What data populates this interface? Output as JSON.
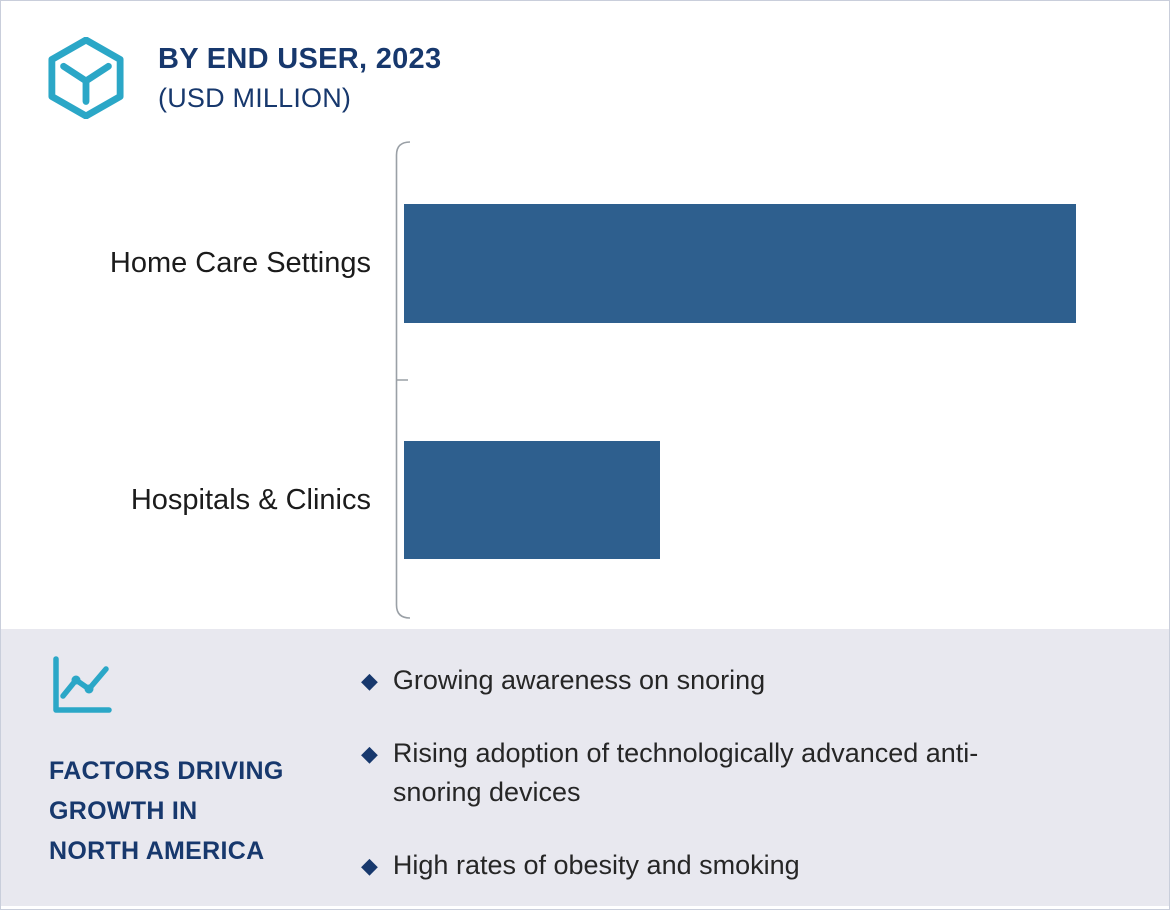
{
  "header": {
    "title": "BY END USER, 2023",
    "subtitle": "(USD MILLION)"
  },
  "chart_data": {
    "type": "bar",
    "orientation": "horizontal",
    "title": "BY END USER, 2023 (USD MILLION)",
    "categories": [
      "Home Care Settings",
      "Hospitals & Clinics"
    ],
    "values": [
      675,
      257
    ],
    "xlim": [
      0,
      766
    ],
    "xlabel": "",
    "ylabel": "",
    "grid": false,
    "legend": false,
    "value_labels": false,
    "bar_color": "#2E5F8E",
    "axis_color": "#9AA0A6"
  },
  "factors": {
    "heading": "FACTORS DRIVING\nGROWTH IN\nNORTH AMERICA",
    "marker": "◆",
    "items": [
      "Growing awareness on snoring",
      "Rising adoption of technologically advanced anti-snoring devices",
      "High rates of obesity and smoking"
    ]
  },
  "icons": {
    "brand": "hexagon-y-icon",
    "factors": "line-chart-icon"
  },
  "colors": {
    "navy": "#17386D",
    "teal": "#2BA7C7",
    "panel_bg": "#E8E8EF",
    "bar": "#2E5F8E"
  }
}
